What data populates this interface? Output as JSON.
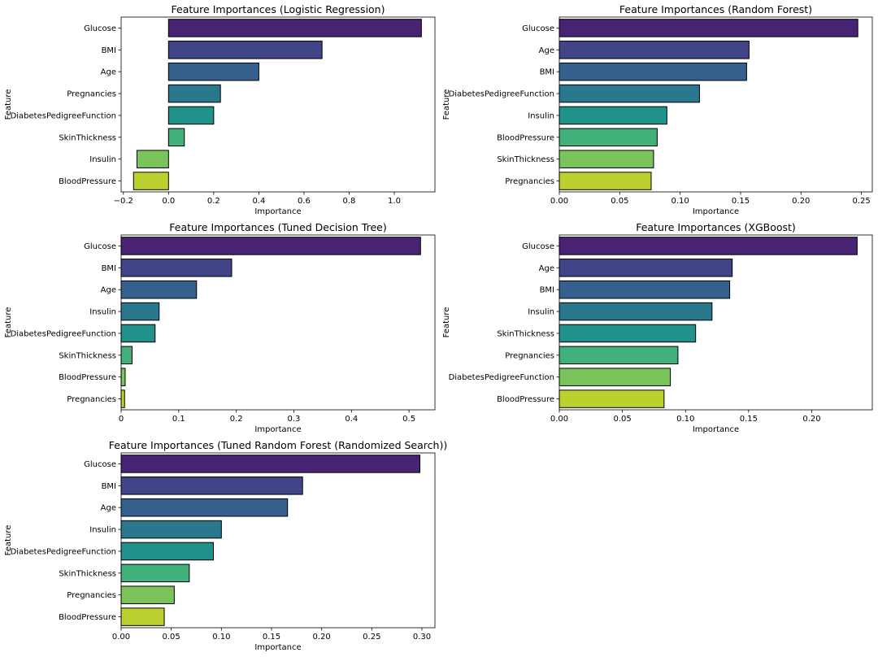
{
  "chart_data": [
    {
      "type": "bar",
      "orientation": "horizontal",
      "title": "Feature Importances (Logistic Regression)",
      "xlabel": "Importance",
      "ylabel": "Feature",
      "categories": [
        "Glucose",
        "BMI",
        "Age",
        "Pregnancies",
        "DiabetesPedigreeFunction",
        "SkinThickness",
        "Insulin",
        "BloodPressure"
      ],
      "values": [
        1.12,
        0.68,
        0.4,
        0.23,
        0.2,
        0.07,
        -0.14,
        -0.155
      ],
      "xlim": [
        -0.21,
        1.18
      ],
      "xticks": [
        -0.2,
        0.0,
        0.2,
        0.4,
        0.6,
        0.8,
        1.0
      ],
      "xtick_labels": [
        "−0.2",
        "0.0",
        "0.2",
        "0.4",
        "0.6",
        "0.8",
        "1.0"
      ]
    },
    {
      "type": "bar",
      "orientation": "horizontal",
      "title": "Feature Importances (Random Forest)",
      "xlabel": "Importance",
      "ylabel": "Feature",
      "categories": [
        "Glucose",
        "Age",
        "BMI",
        "DiabetesPedigreeFunction",
        "Insulin",
        "BloodPressure",
        "SkinThickness",
        "Pregnancies"
      ],
      "values": [
        0.247,
        0.157,
        0.155,
        0.116,
        0.089,
        0.081,
        0.078,
        0.076
      ],
      "xlim": [
        0,
        0.259
      ],
      "xticks": [
        0.0,
        0.05,
        0.1,
        0.15,
        0.2,
        0.25
      ],
      "xtick_labels": [
        "0.00",
        "0.05",
        "0.10",
        "0.15",
        "0.20",
        "0.25"
      ]
    },
    {
      "type": "bar",
      "orientation": "horizontal",
      "title": "Feature Importances (Tuned Decision Tree)",
      "xlabel": "Importance",
      "ylabel": "Feature",
      "categories": [
        "Glucose",
        "BMI",
        "Age",
        "Insulin",
        "DiabetesPedigreeFunction",
        "SkinThickness",
        "BloodPressure",
        "Pregnancies"
      ],
      "values": [
        0.52,
        0.192,
        0.131,
        0.066,
        0.059,
        0.019,
        0.007,
        0.006
      ],
      "xlim": [
        0,
        0.545
      ],
      "xticks": [
        0,
        0.1,
        0.2,
        0.3,
        0.4,
        0.5
      ],
      "xtick_labels": [
        "0",
        "0.1",
        "0.2",
        "0.3",
        "0.4",
        "0.5"
      ]
    },
    {
      "type": "bar",
      "orientation": "horizontal",
      "title": "Feature Importances (XGBoost)",
      "xlabel": "Importance",
      "ylabel": "Feature",
      "categories": [
        "Glucose",
        "Age",
        "BMI",
        "Insulin",
        "SkinThickness",
        "Pregnancies",
        "DiabetesPedigreeFunction",
        "BloodPressure"
      ],
      "values": [
        0.236,
        0.137,
        0.135,
        0.121,
        0.108,
        0.094,
        0.088,
        0.083
      ],
      "xlim": [
        0,
        0.248
      ],
      "xticks": [
        0.0,
        0.05,
        0.1,
        0.15,
        0.2
      ],
      "xtick_labels": [
        "0.00",
        "0.05",
        "0.10",
        "0.15",
        "0.20"
      ]
    },
    {
      "type": "bar",
      "orientation": "horizontal",
      "title": "Feature Importances (Tuned Random Forest (Randomized Search))",
      "xlabel": "Importance",
      "ylabel": "Feature",
      "categories": [
        "Glucose",
        "BMI",
        "Age",
        "Insulin",
        "DiabetesPedigreeFunction",
        "SkinThickness",
        "Pregnancies",
        "BloodPressure"
      ],
      "values": [
        0.298,
        0.181,
        0.166,
        0.1,
        0.092,
        0.068,
        0.053,
        0.043
      ],
      "xlim": [
        0,
        0.313
      ],
      "xticks": [
        0.0,
        0.05,
        0.1,
        0.15,
        0.2,
        0.25,
        0.3
      ],
      "xtick_labels": [
        "0.00",
        "0.05",
        "0.10",
        "0.15",
        "0.20",
        "0.25",
        "0.30"
      ]
    }
  ],
  "palette": [
    "#482374",
    "#414487",
    "#355f8d",
    "#2a788e",
    "#21918c",
    "#41b07b",
    "#7ac45b",
    "#bcd12f"
  ],
  "edge_color": "#000000",
  "background": "#ffffff"
}
